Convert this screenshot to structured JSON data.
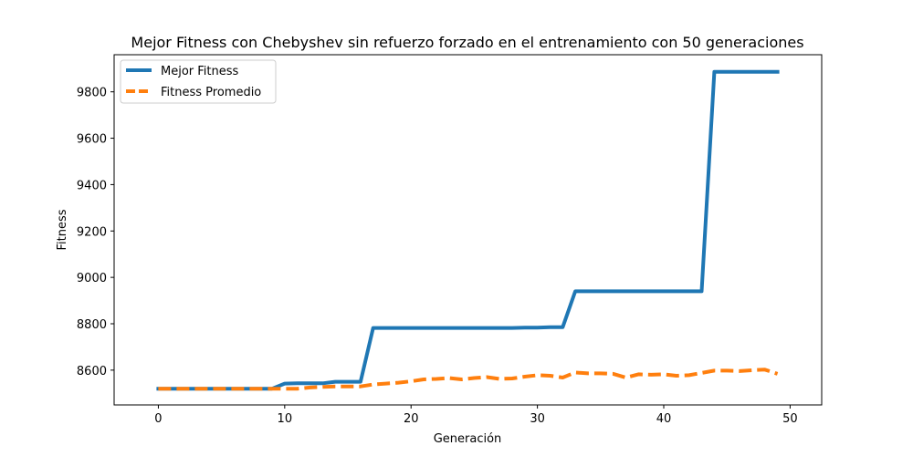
{
  "chart_data": {
    "type": "line",
    "title": "Mejor Fitness con Chebyshev sin refuerzo forzado en el entrenamiento con 50 generaciones",
    "xlabel": "Generación",
    "ylabel": "Fitness",
    "xlim": [
      -3.5,
      52.5
    ],
    "ylim": [
      8450,
      9960
    ],
    "xticks": [
      0,
      10,
      20,
      30,
      40,
      50
    ],
    "yticks": [
      8600,
      8800,
      9000,
      9200,
      9400,
      9600,
      9800
    ],
    "grid": false,
    "legend_position": "top-left",
    "x": [
      0,
      1,
      2,
      3,
      4,
      5,
      6,
      7,
      8,
      9,
      10,
      11,
      12,
      13,
      14,
      15,
      16,
      17,
      18,
      19,
      20,
      21,
      22,
      23,
      24,
      25,
      26,
      27,
      28,
      29,
      30,
      31,
      32,
      33,
      34,
      35,
      36,
      37,
      38,
      39,
      40,
      41,
      42,
      43,
      44,
      45,
      46,
      47,
      48,
      49
    ],
    "series": [
      {
        "name": "Mejor Fitness",
        "color": "#1f77b4",
        "style": "solid",
        "values": [
          8520,
          8520,
          8520,
          8520,
          8520,
          8520,
          8520,
          8520,
          8520,
          8520,
          8542,
          8543,
          8543,
          8543,
          8550,
          8550,
          8550,
          8782,
          8782,
          8782,
          8782,
          8782,
          8782,
          8782,
          8782,
          8782,
          8782,
          8782,
          8782,
          8783,
          8783,
          8785,
          8785,
          8940,
          8940,
          8940,
          8940,
          8940,
          8940,
          8940,
          8940,
          8940,
          8940,
          8940,
          9886,
          9886,
          9886,
          9886,
          9886,
          9886
        ]
      },
      {
        "name": "Fitness Promedio",
        "color": "#ff7f0e",
        "style": "dashed",
        "values": [
          8520,
          8520,
          8520,
          8520,
          8520,
          8520,
          8520,
          8520,
          8520,
          8520,
          8520,
          8520,
          8525,
          8528,
          8530,
          8530,
          8530,
          8538,
          8542,
          8546,
          8552,
          8560,
          8562,
          8566,
          8560,
          8566,
          8570,
          8562,
          8564,
          8572,
          8578,
          8576,
          8568,
          8590,
          8586,
          8586,
          8584,
          8568,
          8582,
          8580,
          8582,
          8576,
          8578,
          8588,
          8598,
          8598,
          8596,
          8600,
          8602,
          8584
        ]
      }
    ]
  }
}
